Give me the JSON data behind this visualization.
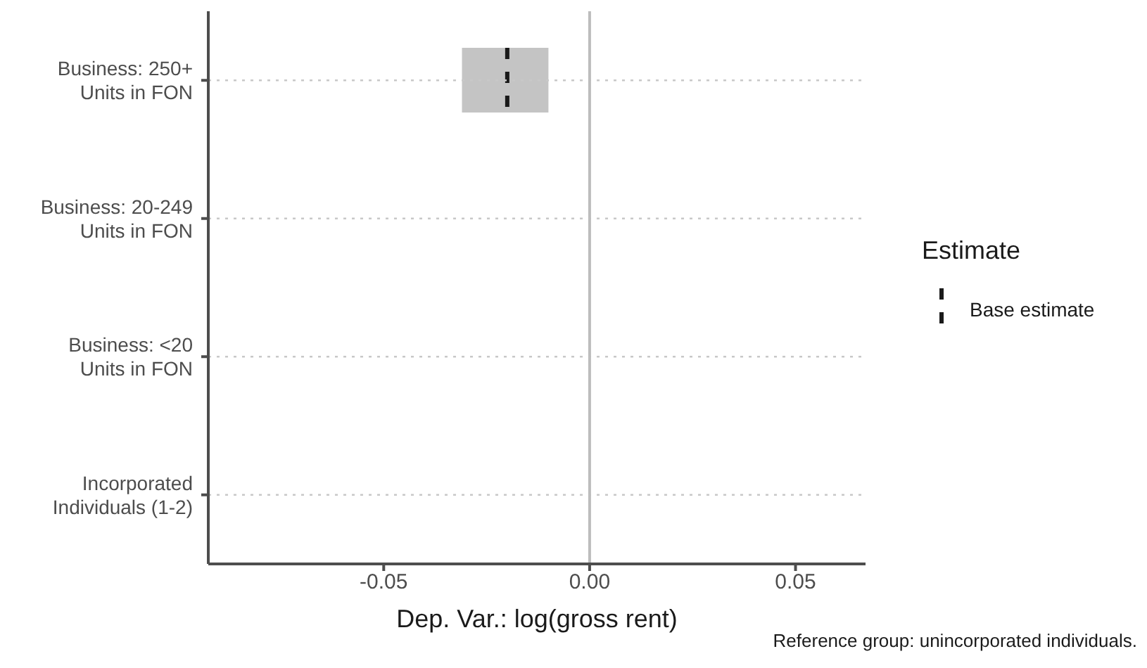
{
  "chart_data": {
    "type": "box",
    "orientation": "horizontal",
    "xlabel": "Dep. Var.: log(gross rent)",
    "legend_title": "Estimate",
    "legend": "right",
    "grid": "y",
    "categories": [
      "Business: 250+ Units in FON",
      "Business: 20-249 Units in FON",
      "Business: <20 Units in FON",
      "Incorporated Individuals (1-2)"
    ],
    "series": [
      {
        "name": "Base estimate",
        "color": "#c4c4c4",
        "line_style": "dashed",
        "boxes": [
          {
            "low": -0.031,
            "q1": -0.031,
            "median": -0.02,
            "q3": -0.01,
            "high": -0.01
          },
          null,
          null,
          null
        ]
      }
    ],
    "xlim": [
      -0.0926,
      0.067
    ],
    "xticks": [
      {
        "value": -0.05,
        "label": "-0.05"
      },
      {
        "value": 0,
        "label": "0.00"
      },
      {
        "value": 0.05,
        "label": "0.05"
      }
    ],
    "ref_lines": [
      {
        "axis": "x",
        "value": 0,
        "color": "#bdbdbd"
      }
    ],
    "annotations": [
      "Reference group: unincorporated individuals."
    ]
  }
}
